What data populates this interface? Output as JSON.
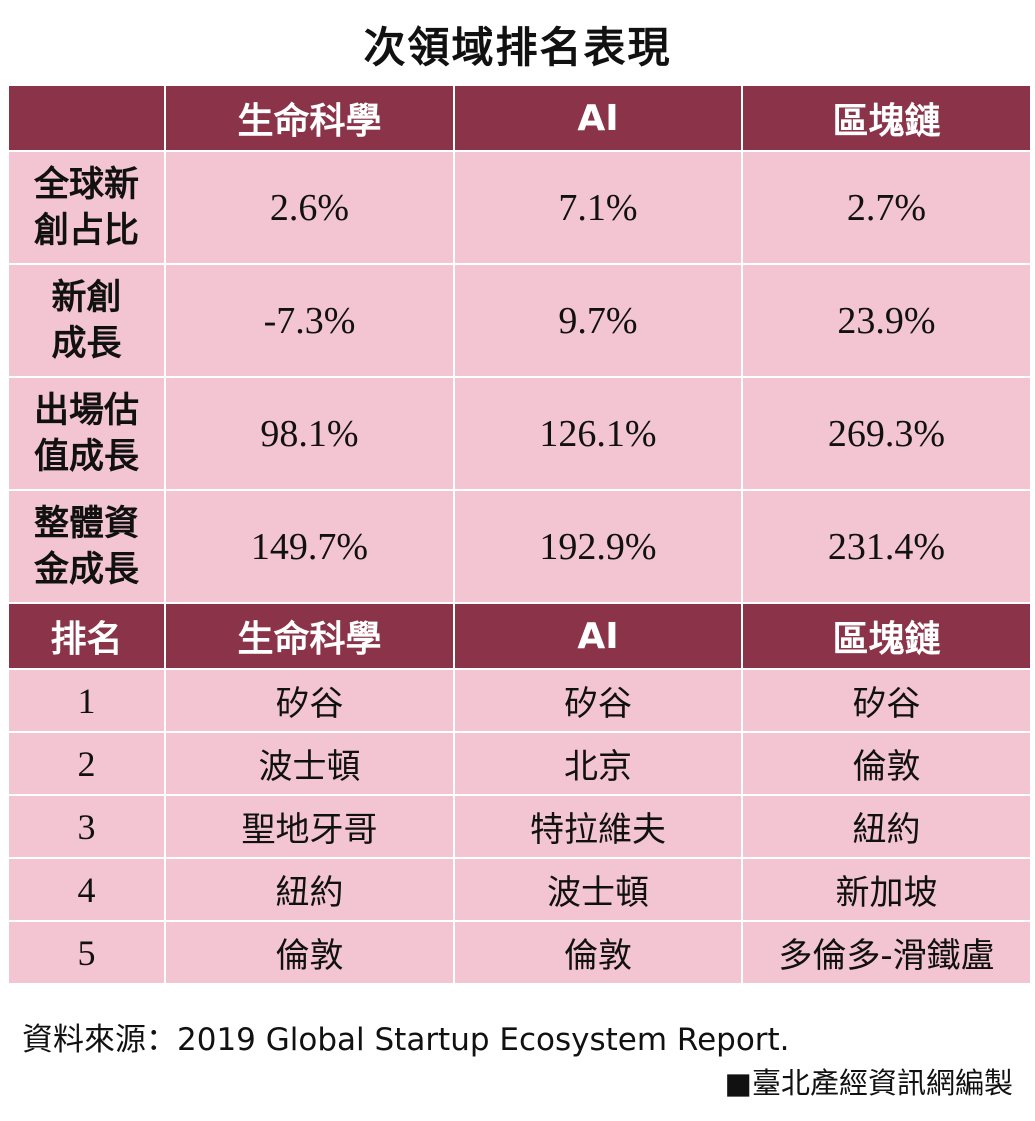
{
  "title": "次領域排名表現",
  "columns": [
    "生命科學",
    "AI",
    "區塊鏈"
  ],
  "metrics": [
    {
      "label_l1": "全球新",
      "label_l2": "創占比",
      "values": [
        "2.6%",
        "7.1%",
        "2.7%"
      ]
    },
    {
      "label_l1": "新創",
      "label_l2": "成長",
      "values": [
        "-7.3%",
        "9.7%",
        "23.9%"
      ]
    },
    {
      "label_l1": "出場估",
      "label_l2": "值成長",
      "values": [
        "98.1%",
        "126.1%",
        "269.3%"
      ]
    },
    {
      "label_l1": "整體資",
      "label_l2": "金成長",
      "values": [
        "149.7%",
        "192.9%",
        "231.4%"
      ]
    }
  ],
  "rank_header": "排名",
  "rankings": [
    {
      "rank": "1",
      "values": [
        "矽谷",
        "矽谷",
        "矽谷"
      ]
    },
    {
      "rank": "2",
      "values": [
        "波士頓",
        "北京",
        "倫敦"
      ]
    },
    {
      "rank": "3",
      "values": [
        "聖地牙哥",
        "特拉維夫",
        "紐約"
      ]
    },
    {
      "rank": "4",
      "values": [
        "紐約",
        "波士頓",
        "新加坡"
      ]
    },
    {
      "rank": "5",
      "values": [
        "倫敦",
        "倫敦",
        "多倫多-滑鐵盧"
      ]
    }
  ],
  "source": "資料來源：2019 Global Startup Ecosystem Report.",
  "credit": "■臺北產經資訊網編製",
  "colors": {
    "header": "#8b3349",
    "cell": "#f3c5d3"
  }
}
